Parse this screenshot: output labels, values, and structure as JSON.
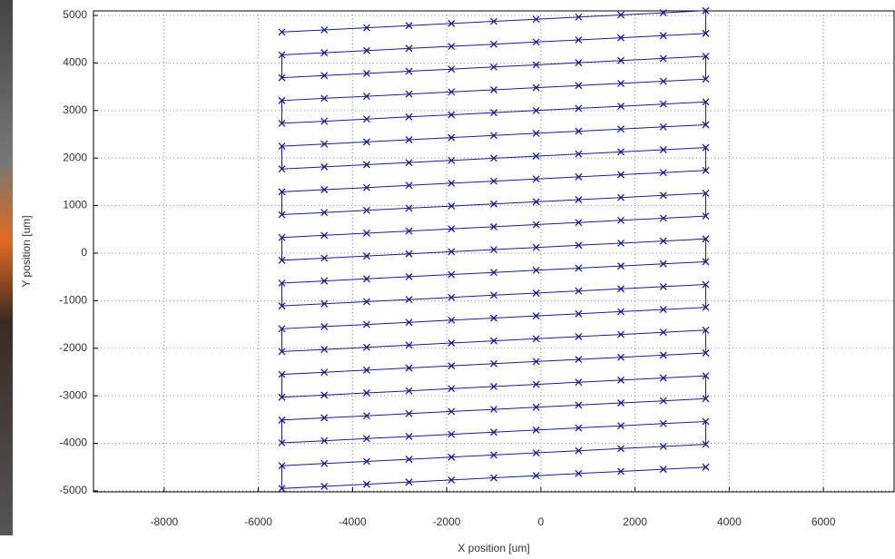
{
  "chart_data": {
    "type": "line",
    "marker": "x",
    "color": "#1c1c8c",
    "grid": true,
    "xlabel": "X position [um]",
    "ylabel": "Y position [um]",
    "xlim": [
      -9500,
      7500
    ],
    "ylim": [
      -5020,
      5095
    ],
    "xticks": [
      -8000,
      -6000,
      -4000,
      -2000,
      0,
      2000,
      4000,
      6000
    ],
    "yticks": [
      -5000,
      -4000,
      -3000,
      -2000,
      -1000,
      0,
      1000,
      2000,
      3000,
      4000,
      5000
    ],
    "x": [
      -5500,
      -4600,
      -3700,
      -2800,
      -1900,
      -1000,
      -100,
      800,
      1700,
      2600,
      3500,
      3500,
      2600,
      1700,
      800,
      -100,
      -1000,
      -1900,
      -2800,
      -3700,
      -4600,
      -5500,
      -5500,
      -4600,
      -3700,
      -2800,
      -1900,
      -1000,
      -100,
      800,
      1700,
      2600,
      3500,
      3500,
      2600,
      1700,
      800,
      -100,
      -1000,
      -1900,
      -2800,
      -3700,
      -4600,
      -5500,
      -5500,
      -4600,
      -3700,
      -2800,
      -1900,
      -1000,
      -100,
      800,
      1700,
      2600,
      3500,
      3500,
      2600,
      1700,
      800,
      -100,
      -1000,
      -1900,
      -2800,
      -3700,
      -4600,
      -5500,
      -5500,
      -4600,
      -3700,
      -2800,
      -1900,
      -1000,
      -100,
      800,
      1700,
      2600,
      3500,
      3500,
      2600,
      1700,
      800,
      -100,
      -1000,
      -1900,
      -2800,
      -3700,
      -4600,
      -5500,
      -5500,
      -4600,
      -3700,
      -2800,
      -1900,
      -1000,
      -100,
      800,
      1700,
      2600,
      3500,
      3500,
      2600,
      1700,
      800,
      -100,
      -1000,
      -1900,
      -2800,
      -3700,
      -4600,
      -5500,
      -5500,
      -4600,
      -3700,
      -2800,
      -1900,
      -1000,
      -100,
      800,
      1700,
      2600,
      3500,
      3500,
      2600,
      1700,
      800,
      -100,
      -1000,
      -1900,
      -2800,
      -3700,
      -4600,
      -5500,
      -5500,
      -4600,
      -3700,
      -2800,
      -1900,
      -1000,
      -100,
      800,
      1700,
      2600,
      3500,
      3500,
      2600,
      1700,
      800,
      -100,
      -1000,
      -1900,
      -2800,
      -3700,
      -4600,
      -5500,
      -5500,
      -4600,
      -3700,
      -2800,
      -1900,
      -1000,
      -100,
      800,
      1700,
      2600,
      3500,
      3500,
      2600,
      1700,
      800,
      -100,
      -1000,
      -1900,
      -2800,
      -3700,
      -4600,
      -5500,
      -5500,
      -4600,
      -3700,
      -2800,
      -1900,
      -1000,
      -100,
      800,
      1700,
      2600,
      3500,
      3500,
      2600,
      1700,
      800,
      -100,
      -1000,
      -1900,
      -2800,
      -3700,
      -4600,
      -5500,
      -5500,
      -4600,
      -3700,
      -2800,
      -1900,
      -1000,
      -100,
      800,
      1700,
      2600,
      3500,
      3500,
      2600,
      1700,
      800,
      -100,
      -1000,
      -1900,
      -2800,
      -3700,
      -4600,
      -5500,
      -5500,
      -4600,
      -3700,
      -2800,
      -1900,
      -1000,
      -100,
      800,
      1700,
      2600,
      3500
    ],
    "y": [
      4650,
      4695,
      4740,
      4785,
      4830,
      4875,
      4920,
      4965,
      5010,
      5055,
      5100,
      4620,
      4575,
      4530,
      4485,
      4440,
      4395,
      4350,
      4305,
      4260,
      4215,
      4170,
      3690,
      3735,
      3780,
      3825,
      3870,
      3915,
      3960,
      4005,
      4050,
      4095,
      4140,
      3660,
      3615,
      3570,
      3525,
      3480,
      3435,
      3390,
      3345,
      3300,
      3255,
      3210,
      2730,
      2775,
      2820,
      2865,
      2910,
      2955,
      3000,
      3045,
      3090,
      3135,
      3180,
      2700,
      2655,
      2610,
      2565,
      2520,
      2475,
      2430,
      2385,
      2340,
      2295,
      2250,
      1770,
      1815,
      1860,
      1905,
      1950,
      1995,
      2040,
      2085,
      2130,
      2175,
      2220,
      1740,
      1695,
      1650,
      1605,
      1560,
      1515,
      1470,
      1425,
      1380,
      1335,
      1290,
      810,
      855,
      900,
      945,
      990,
      1035,
      1080,
      1125,
      1170,
      1215,
      1260,
      780,
      735,
      690,
      645,
      600,
      555,
      510,
      465,
      420,
      375,
      330,
      -150,
      -105,
      -60,
      -15,
      30,
      75,
      120,
      165,
      210,
      255,
      300,
      -180,
      -225,
      -270,
      -315,
      -360,
      -405,
      -450,
      -495,
      -540,
      -585,
      -630,
      -1110,
      -1065,
      -1020,
      -975,
      -930,
      -885,
      -840,
      -795,
      -750,
      -705,
      -660,
      -1140,
      -1185,
      -1230,
      -1275,
      -1320,
      -1365,
      -1410,
      -1455,
      -1500,
      -1545,
      -1590,
      -2070,
      -2025,
      -1980,
      -1935,
      -1890,
      -1845,
      -1800,
      -1755,
      -1710,
      -1665,
      -1620,
      -2100,
      -2145,
      -2190,
      -2235,
      -2280,
      -2325,
      -2370,
      -2415,
      -2460,
      -2505,
      -2550,
      -3030,
      -2985,
      -2940,
      -2895,
      -2850,
      -2805,
      -2760,
      -2715,
      -2670,
      -2625,
      -2580,
      -3060,
      -3105,
      -3150,
      -3195,
      -3240,
      -3285,
      -3330,
      -3375,
      -3420,
      -3465,
      -3510,
      -3990,
      -3945,
      -3900,
      -3855,
      -3810,
      -3765,
      -3720,
      -3675,
      -3630,
      -3585,
      -3540,
      -4020,
      -4065,
      -4110,
      -4155,
      -4200,
      -4245,
      -4290,
      -4335,
      -4380,
      -4425,
      -4470,
      -4950,
      -4905,
      -4860,
      -4815,
      -4770,
      -4725,
      -4680,
      -4635,
      -4590,
      -4545,
      -4500
    ]
  }
}
